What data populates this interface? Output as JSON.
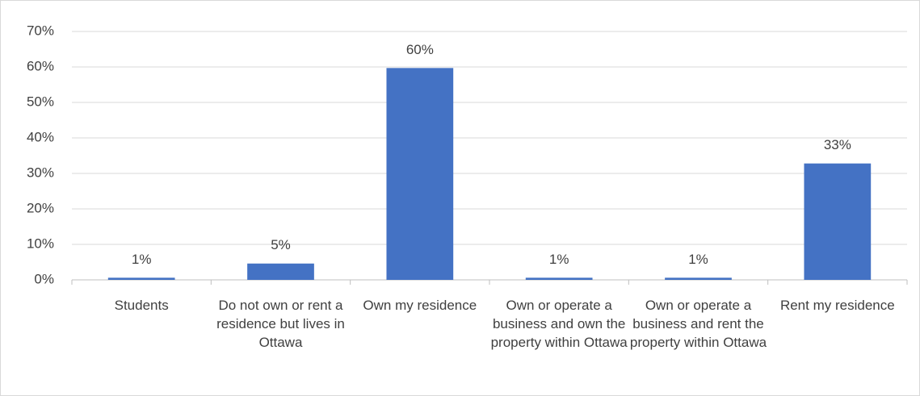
{
  "chart_data": {
    "type": "bar",
    "categories": [
      "Students",
      "Do not own or rent a residence but lives in Ottawa",
      "Own my residence",
      "Own or operate a business and own the property within Ottawa",
      "Own or operate a business and rent the property within Ottawa",
      "Rent my residence"
    ],
    "values": [
      0.6,
      4.6,
      59.7,
      0.6,
      0.6,
      32.8
    ],
    "value_labels": [
      "1%",
      "5%",
      "60%",
      "1%",
      "1%",
      "33%"
    ],
    "color": "#4472c4",
    "ylim": [
      0,
      70
    ],
    "yticks": [
      {
        "value": 0,
        "label": "0%"
      },
      {
        "value": 10,
        "label": "10%"
      },
      {
        "value": 20,
        "label": "20%"
      },
      {
        "value": 30,
        "label": "30%"
      },
      {
        "value": 40,
        "label": "40%"
      },
      {
        "value": 50,
        "label": "50%"
      },
      {
        "value": 60,
        "label": "60%"
      },
      {
        "value": 70,
        "label": "70%"
      }
    ],
    "grid": true
  }
}
